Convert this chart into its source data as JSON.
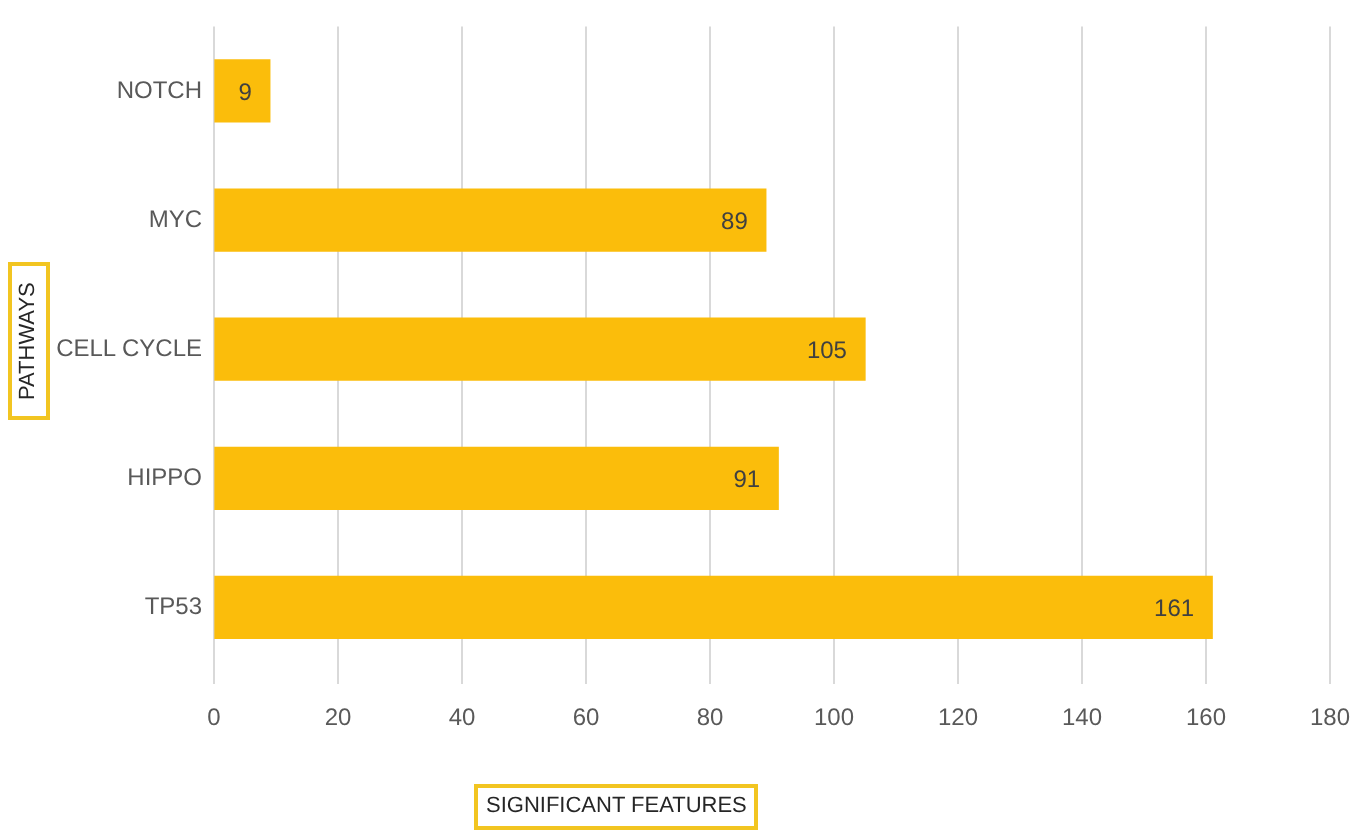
{
  "chart_data": {
    "type": "bar",
    "orientation": "horizontal",
    "xlabel": "SIGNIFICANT FEATURES",
    "ylabel": "PATHWAYS",
    "categories": [
      "NOTCH",
      "MYC",
      "CELL CYCLE",
      "HIPPO",
      "TP53"
    ],
    "values": [
      9,
      89,
      105,
      91,
      161
    ],
    "color": "#fbbd0b",
    "xlim": [
      0,
      180
    ],
    "xticks": [
      0,
      20,
      40,
      60,
      80,
      100,
      120,
      140,
      160,
      180
    ],
    "grid": "x",
    "data_labels": true
  }
}
